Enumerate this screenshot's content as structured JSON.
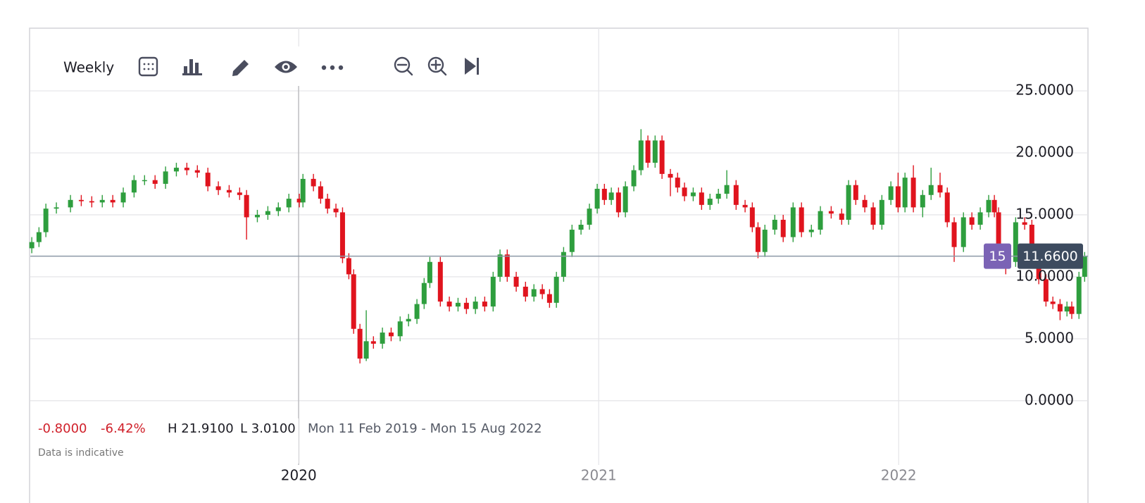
{
  "chart_data": {
    "type": "candlestick",
    "interval": "Weekly",
    "x": [
      2019.11,
      2019.134,
      2019.157,
      2019.192,
      2019.239,
      2019.275,
      2019.31,
      2019.345,
      2019.38,
      2019.415,
      2019.451,
      2019.486,
      2019.521,
      2019.556,
      2019.592,
      2019.627,
      2019.662,
      2019.697,
      2019.732,
      2019.768,
      2019.803,
      2019.826,
      2019.862,
      2019.897,
      2019.932,
      2019.967,
      2020.002,
      2020.014,
      2020.049,
      2020.073,
      2020.096,
      2020.124,
      2020.146,
      2020.167,
      2020.183,
      2020.204,
      2020.225,
      2020.249,
      2020.279,
      2020.308,
      2020.338,
      2020.366,
      2020.394,
      2020.418,
      2020.437,
      2020.472,
      2020.502,
      2020.531,
      2020.559,
      2020.589,
      2020.62,
      2020.648,
      2020.671,
      2020.695,
      2020.725,
      2020.756,
      2020.784,
      2020.812,
      2020.836,
      2020.859,
      2020.883,
      2020.911,
      2020.941,
      2020.969,
      2020.995,
      2021.019,
      2021.042,
      2021.066,
      2021.089,
      2021.117,
      2021.141,
      2021.164,
      2021.188,
      2021.211,
      2021.239,
      2021.263,
      2021.286,
      2021.315,
      2021.343,
      2021.371,
      2021.399,
      2021.427,
      2021.458,
      2021.488,
      2021.512,
      2021.531,
      2021.554,
      2021.587,
      2021.615,
      2021.648,
      2021.676,
      2021.709,
      2021.739,
      2021.775,
      2021.81,
      2021.833,
      2021.857,
      2021.887,
      2021.915,
      2021.944,
      2021.974,
      2021.998,
      2022.021,
      2022.049,
      2022.08,
      2022.108,
      2022.138,
      2022.162,
      2022.185,
      2022.216,
      2022.244,
      2022.272,
      2022.3,
      2022.319,
      2022.333,
      2022.357,
      2022.39,
      2022.42,
      2022.444,
      2022.467,
      2022.491,
      2022.514,
      2022.538,
      2022.561,
      2022.577,
      2022.601,
      2022.62
    ],
    "open": [
      12.3,
      12.8,
      13.6,
      15.5,
      15.6,
      16.2,
      16.1,
      16.0,
      16.2,
      16.0,
      16.8,
      17.8,
      17.8,
      17.5,
      18.5,
      18.8,
      18.6,
      18.4,
      17.3,
      17.0,
      16.8,
      16.6,
      14.8,
      15.0,
      15.3,
      15.6,
      16.3,
      16.0,
      17.9,
      17.3,
      16.3,
      15.5,
      15.2,
      11.5,
      10.2,
      5.8,
      3.4,
      4.8,
      4.6,
      5.5,
      5.2,
      6.4,
      6.6,
      7.8,
      9.5,
      11.2,
      8.0,
      7.6,
      7.9,
      7.4,
      8.0,
      7.6,
      10.0,
      11.8,
      10.0,
      9.2,
      8.4,
      9.0,
      8.6,
      7.9,
      10.0,
      12.0,
      13.8,
      14.2,
      15.5,
      17.1,
      16.2,
      16.8,
      15.2,
      17.3,
      18.6,
      21.0,
      19.2,
      21.0,
      18.3,
      18.0,
      17.2,
      16.5,
      16.8,
      15.8,
      16.3,
      16.7,
      17.4,
      15.8,
      15.6,
      14.0,
      12.0,
      13.8,
      14.6,
      13.2,
      15.6,
      13.6,
      13.8,
      15.3,
      15.1,
      14.6,
      17.4,
      16.2,
      15.6,
      14.2,
      16.2,
      17.3,
      15.6,
      18.0,
      15.6,
      16.6,
      17.4,
      16.8,
      14.4,
      12.4,
      14.8,
      14.2,
      15.2,
      16.2,
      15.2,
      12.2,
      11.2,
      14.4,
      14.2,
      11.5,
      9.8,
      8.0,
      7.8,
      7.2,
      7.6,
      7.0,
      10.0
    ],
    "high": [
      13.2,
      14.0,
      15.9,
      16.0,
      16.6,
      16.6,
      16.5,
      16.6,
      16.6,
      17.2,
      18.2,
      18.2,
      18.2,
      18.9,
      19.2,
      19.2,
      19.0,
      18.8,
      17.7,
      17.4,
      17.2,
      17.0,
      15.4,
      15.7,
      16.0,
      16.7,
      16.7,
      18.3,
      18.3,
      17.7,
      16.7,
      15.9,
      15.6,
      11.9,
      10.6,
      6.2,
      7.3,
      5.2,
      5.9,
      5.9,
      6.8,
      7.0,
      8.2,
      9.9,
      11.6,
      11.6,
      8.4,
      8.3,
      8.3,
      8.4,
      8.4,
      10.4,
      12.2,
      12.2,
      10.4,
      9.6,
      9.4,
      9.4,
      9.0,
      10.4,
      12.4,
      14.2,
      14.6,
      15.9,
      17.5,
      17.5,
      17.2,
      17.2,
      17.7,
      19.0,
      21.91,
      21.4,
      21.4,
      21.4,
      18.7,
      18.4,
      17.6,
      17.2,
      17.2,
      16.7,
      17.1,
      18.6,
      17.8,
      16.2,
      16.0,
      14.4,
      14.2,
      15.0,
      15.0,
      16.0,
      16.0,
      14.2,
      15.7,
      15.7,
      15.5,
      17.8,
      17.8,
      16.6,
      16.0,
      16.6,
      17.7,
      18.4,
      18.4,
      19.0,
      17.0,
      18.8,
      18.4,
      17.2,
      14.8,
      15.2,
      15.2,
      15.6,
      16.6,
      16.6,
      15.6,
      12.6,
      14.8,
      14.8,
      14.6,
      11.9,
      10.2,
      8.4,
      8.2,
      8.0,
      8.0,
      10.4,
      12.0
    ],
    "low": [
      11.9,
      12.4,
      13.2,
      15.1,
      15.2,
      15.7,
      15.6,
      15.6,
      15.6,
      15.6,
      16.4,
      17.4,
      17.1,
      17.1,
      18.1,
      18.2,
      18.0,
      16.9,
      16.6,
      16.4,
      16.2,
      13.0,
      14.4,
      14.6,
      14.9,
      15.2,
      15.6,
      15.6,
      16.9,
      15.9,
      15.1,
      14.8,
      11.1,
      9.8,
      5.4,
      3.01,
      3.2,
      4.2,
      4.2,
      4.8,
      4.8,
      6.0,
      6.2,
      7.4,
      9.1,
      7.6,
      7.2,
      7.2,
      7.0,
      7.0,
      7.2,
      7.2,
      9.6,
      9.6,
      8.8,
      8.0,
      8.0,
      8.2,
      7.5,
      7.5,
      9.6,
      11.6,
      13.4,
      13.8,
      15.1,
      15.8,
      15.8,
      14.8,
      14.8,
      16.9,
      18.2,
      18.8,
      18.8,
      17.9,
      16.5,
      16.8,
      16.1,
      16.1,
      15.4,
      15.4,
      15.9,
      16.3,
      15.4,
      15.2,
      13.6,
      11.5,
      11.6,
      13.4,
      12.8,
      12.8,
      13.2,
      13.2,
      13.4,
      14.7,
      14.2,
      14.2,
      15.8,
      15.2,
      13.8,
      13.8,
      15.8,
      15.2,
      15.2,
      15.2,
      14.8,
      16.2,
      16.4,
      14.0,
      11.2,
      12.0,
      13.8,
      13.8,
      14.8,
      14.8,
      11.8,
      10.2,
      10.8,
      13.8,
      11.1,
      9.4,
      7.6,
      7.4,
      6.5,
      6.8,
      6.6,
      6.6,
      9.6
    ],
    "close": [
      12.8,
      13.6,
      15.5,
      15.6,
      16.2,
      16.1,
      16.0,
      16.2,
      16.0,
      16.8,
      17.8,
      17.8,
      17.5,
      18.5,
      18.8,
      18.6,
      18.4,
      17.3,
      17.0,
      16.8,
      16.6,
      14.8,
      15.0,
      15.3,
      15.6,
      16.3,
      16.0,
      17.9,
      17.3,
      16.3,
      15.5,
      15.2,
      11.5,
      10.2,
      5.8,
      3.4,
      4.8,
      4.6,
      5.5,
      5.2,
      6.4,
      6.6,
      7.8,
      9.5,
      11.2,
      8.0,
      7.6,
      7.9,
      7.4,
      8.0,
      7.6,
      10.0,
      11.8,
      10.0,
      9.2,
      8.4,
      9.0,
      8.6,
      7.9,
      10.0,
      12.0,
      13.8,
      14.2,
      15.5,
      17.1,
      16.2,
      16.8,
      15.2,
      17.3,
      18.6,
      21.0,
      19.2,
      21.0,
      18.3,
      18.0,
      17.2,
      16.5,
      16.8,
      15.8,
      16.3,
      16.7,
      17.4,
      15.8,
      15.6,
      14.0,
      12.0,
      13.8,
      14.6,
      13.2,
      15.6,
      13.6,
      13.8,
      15.3,
      15.1,
      14.6,
      17.4,
      16.2,
      15.6,
      14.2,
      16.2,
      17.3,
      15.6,
      18.0,
      15.6,
      16.6,
      17.4,
      16.8,
      14.4,
      12.4,
      14.8,
      14.2,
      15.2,
      16.2,
      15.2,
      12.2,
      11.2,
      14.4,
      14.2,
      11.5,
      9.8,
      8.0,
      7.8,
      7.2,
      7.6,
      7.0,
      10.0,
      11.66
    ],
    "up_color": "#2e9e3e",
    "down_color": "#e0141e",
    "xlim": [
      2019.105,
      2022.631
    ],
    "xticks": [
      2020,
      2021,
      2022
    ],
    "ylim": [
      -4.9,
      30.06
    ],
    "yticks": [
      {
        "value": 0,
        "label": "0.0000"
      },
      {
        "value": 5,
        "label": "5.0000"
      },
      {
        "value": 10,
        "label": "10.0000"
      },
      {
        "value": 15,
        "label": "15.0000"
      },
      {
        "value": 20,
        "label": "20.0000"
      },
      {
        "value": 25,
        "label": "25.0000"
      }
    ],
    "grid": true,
    "last_price": {
      "value": 11.66,
      "label": "11.6600"
    },
    "badge": "15",
    "summary": {
      "change": "-0.8000",
      "change_pct": "-6.42%",
      "high": "H 21.9100",
      "low": "L 3.0100",
      "range": "Mon 11 Feb 2019 - Mon 15 Aug 2022"
    },
    "note": "Data is indicative"
  }
}
